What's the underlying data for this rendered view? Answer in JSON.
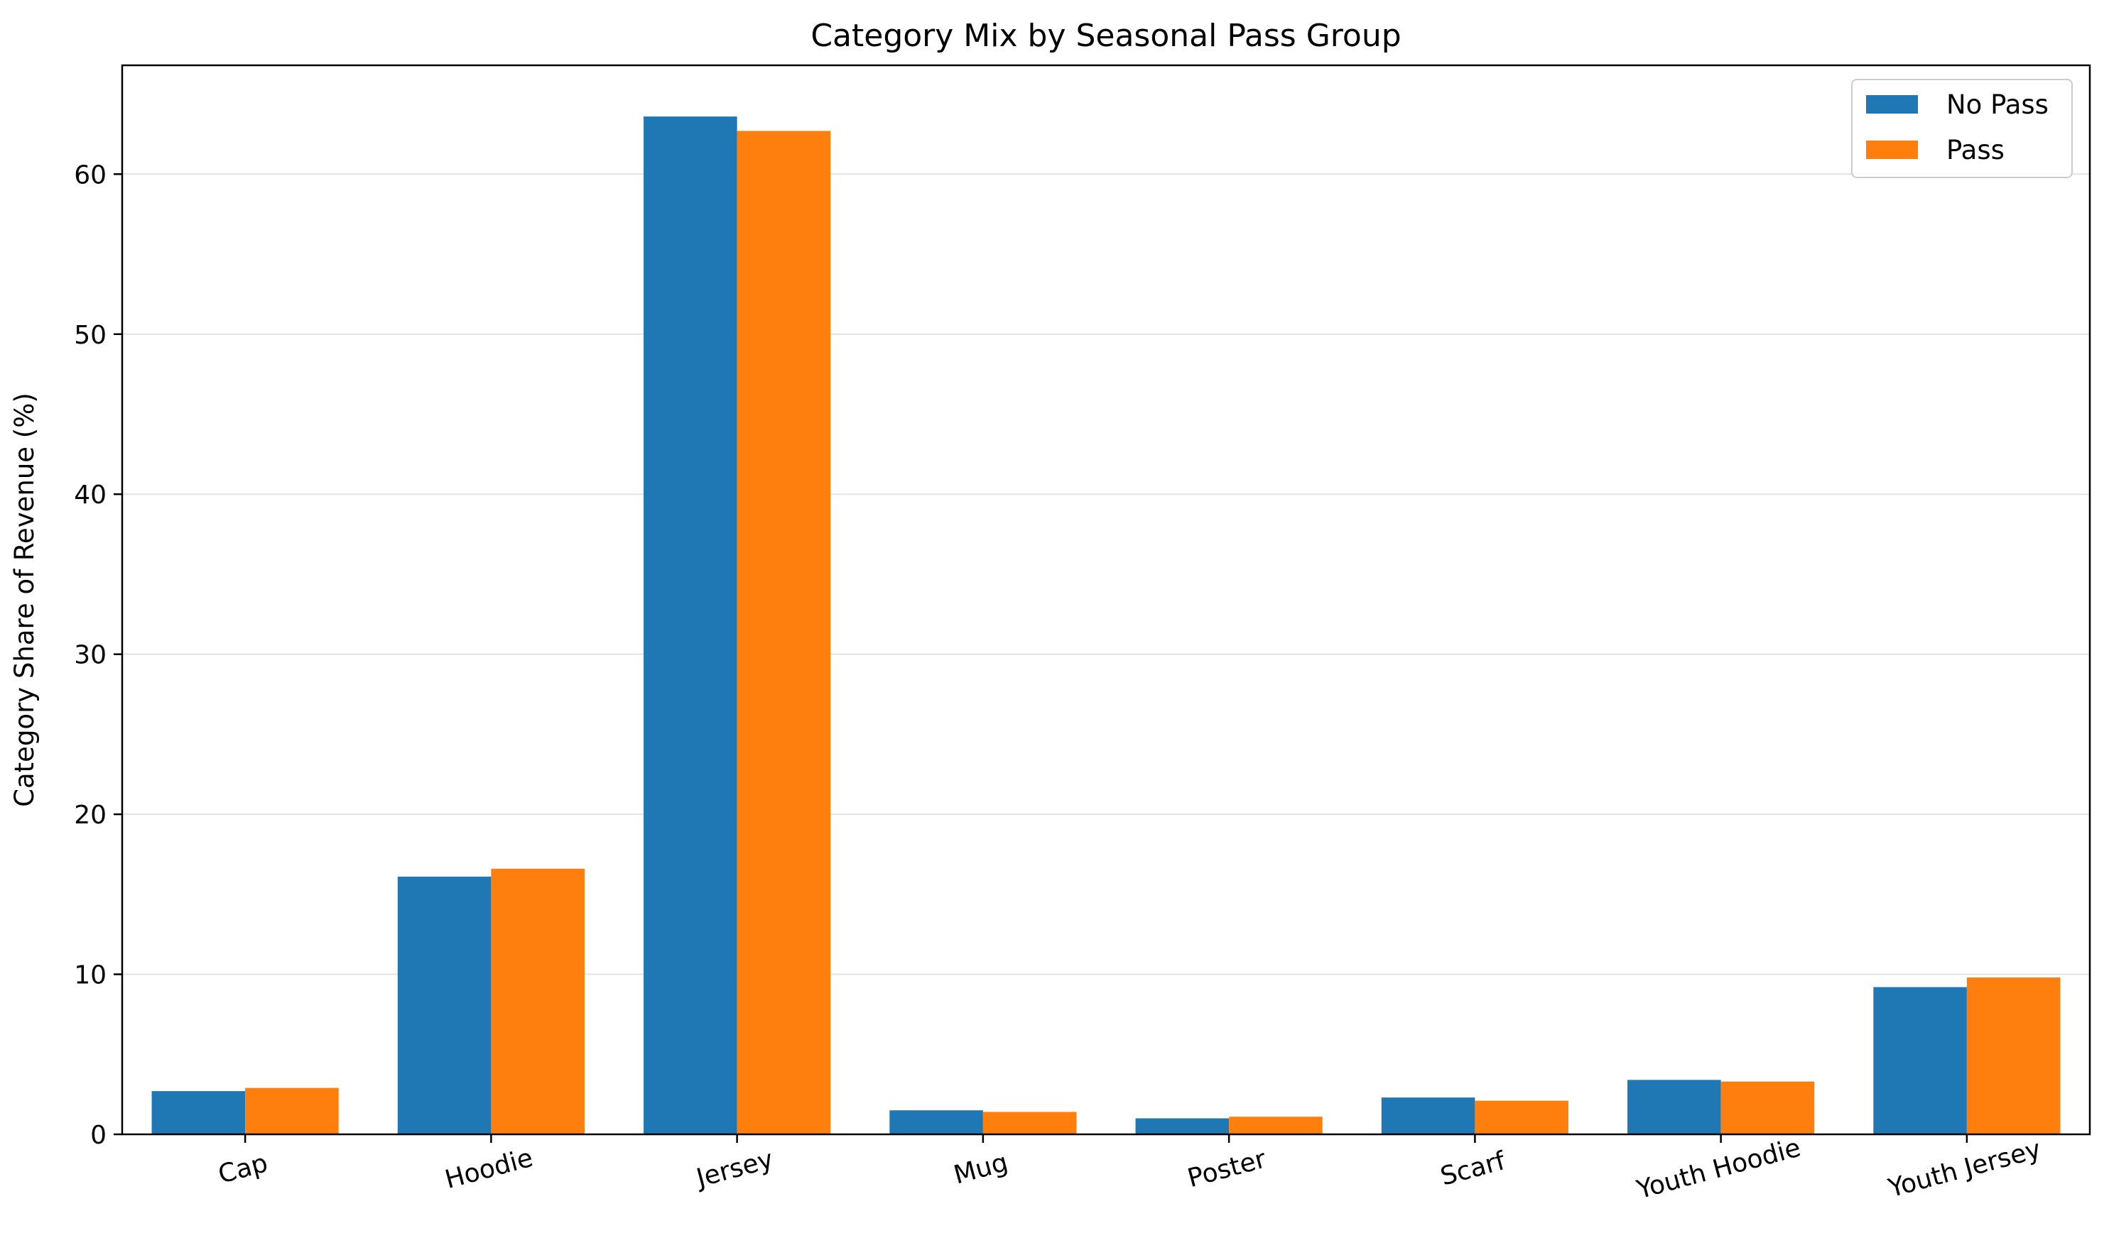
{
  "chart_data": {
    "type": "bar",
    "title": "Category Mix by Seasonal Pass Group",
    "xlabel": "",
    "ylabel": "Category Share of Revenue (%)",
    "categories": [
      "Cap",
      "Hoodie",
      "Jersey",
      "Mug",
      "Poster",
      "Scarf",
      "Youth Hoodie",
      "Youth Jersey"
    ],
    "series": [
      {
        "name": "No Pass",
        "color": "#1f77b4",
        "values": [
          2.7,
          16.1,
          63.6,
          1.5,
          1.0,
          2.3,
          3.4,
          9.2
        ]
      },
      {
        "name": "Pass",
        "color": "#ff7f0e",
        "values": [
          2.9,
          16.6,
          62.7,
          1.4,
          1.1,
          2.1,
          3.3,
          9.8
        ]
      }
    ],
    "ylim": [
      0,
      66.8
    ],
    "yticks": [
      0,
      10,
      20,
      30,
      40,
      50,
      60
    ],
    "grid": "y",
    "legend_position": "top-right"
  }
}
